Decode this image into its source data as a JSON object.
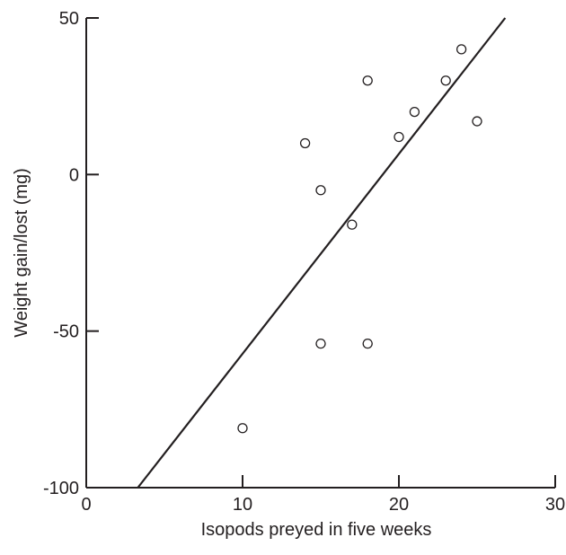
{
  "chart_data": {
    "type": "scatter",
    "title": "",
    "xlabel": "Isopods preyed in five weeks",
    "ylabel": "Weight gain/lost (mg)",
    "xlim": [
      0,
      30
    ],
    "ylim": [
      -100,
      50
    ],
    "x_ticks": [
      0,
      10,
      20,
      30
    ],
    "y_ticks": [
      -100,
      -50,
      0,
      50
    ],
    "x_tick_labels": [
      "0",
      "10",
      "20",
      "30"
    ],
    "y_tick_labels": [
      "-100",
      "-50",
      "0",
      "50"
    ],
    "grid": false,
    "legend": "none",
    "series": [
      {
        "marker": "open-circle",
        "color": "#231f20",
        "points": [
          {
            "x": 10,
            "y": -81
          },
          {
            "x": 14,
            "y": 10
          },
          {
            "x": 15,
            "y": -5
          },
          {
            "x": 15,
            "y": -54
          },
          {
            "x": 17,
            "y": -16
          },
          {
            "x": 18,
            "y": 30
          },
          {
            "x": 18,
            "y": -54
          },
          {
            "x": 20,
            "y": 12
          },
          {
            "x": 21,
            "y": 20
          },
          {
            "x": 23,
            "y": 30
          },
          {
            "x": 24,
            "y": 40
          },
          {
            "x": 25,
            "y": 17
          }
        ]
      }
    ],
    "fit_line": {
      "color": "#231f20",
      "points": [
        {
          "x": 3.3,
          "y": -100
        },
        {
          "x": 26.8,
          "y": 50
        }
      ]
    }
  }
}
